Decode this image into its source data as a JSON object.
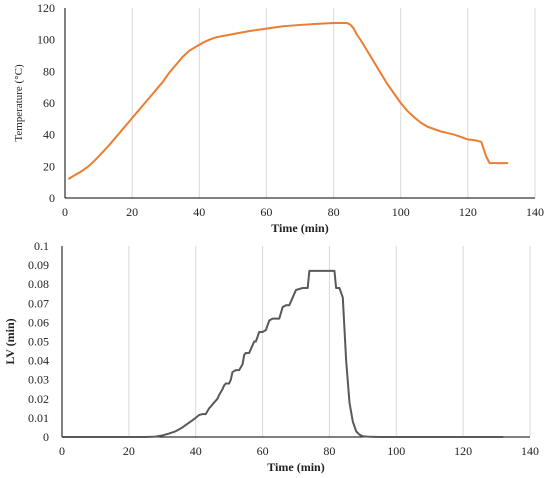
{
  "chart_data": [
    {
      "type": "line",
      "xlabel": "Time (min)",
      "ylabel": "Temperature  (°C)",
      "xlim": [
        0,
        140
      ],
      "ylim": [
        0,
        120
      ],
      "x_ticks": [
        "0",
        "20",
        "40",
        "60",
        "80",
        "100",
        "120",
        "140"
      ],
      "y_ticks": [
        "0",
        "20",
        "40",
        "60",
        "80",
        "100",
        "120"
      ],
      "grid": "vertical",
      "color": "#ed7d31",
      "series": [
        {
          "x": [
            1,
            3,
            5,
            7,
            9,
            11,
            13,
            15,
            17,
            19,
            21,
            23,
            25,
            27,
            29,
            31,
            33,
            35,
            37,
            39,
            41,
            43,
            45,
            50,
            55,
            60,
            65,
            70,
            75,
            80,
            84,
            85,
            86,
            87,
            88,
            90,
            92,
            94,
            96,
            98,
            100,
            102,
            104,
            106,
            108,
            110,
            112,
            114,
            116,
            118,
            120,
            122,
            123,
            124,
            125,
            125.5,
            126,
            126.5,
            127,
            128,
            130,
            132
          ],
          "y": [
            12,
            14.5,
            17,
            20,
            24,
            28.5,
            33,
            38,
            43,
            48,
            53,
            58,
            63,
            68,
            73,
            79,
            84,
            89,
            93,
            95.5,
            98,
            100,
            101.5,
            103.5,
            105.5,
            107,
            108.5,
            109.3,
            110,
            110.5,
            110.5,
            109.5,
            107,
            103,
            100,
            93,
            86,
            79,
            72,
            66,
            60,
            55,
            51,
            47.5,
            45,
            43.5,
            42,
            41,
            40,
            38.5,
            37,
            36.5,
            36,
            35.5,
            29,
            26,
            24,
            22,
            22,
            22,
            22,
            22
          ]
        }
      ]
    },
    {
      "type": "line",
      "xlabel": "Time (min)",
      "ylabel": "LV (min)",
      "xlim": [
        0,
        140
      ],
      "ylim": [
        0,
        0.1
      ],
      "x_ticks": [
        "0",
        "20",
        "40",
        "60",
        "80",
        "100",
        "120",
        "140"
      ],
      "y_ticks": [
        "0",
        "0.01",
        "0.02",
        "0.03",
        "0.04",
        "0.05",
        "0.06",
        "0.07",
        "0.08",
        "0.09",
        "0.1"
      ],
      "grid": "vertical",
      "color": "#595959",
      "series": [
        {
          "x": [
            0,
            25,
            28,
            30,
            32,
            34,
            36,
            38,
            40,
            41,
            42,
            43,
            44,
            45,
            46,
            46.5,
            47,
            48,
            48.5,
            49,
            50,
            50.5,
            51,
            52,
            53,
            54,
            54.5,
            55,
            56,
            57,
            57.5,
            58,
            59,
            60,
            61,
            62,
            63,
            63.5,
            64,
            65,
            66,
            67,
            67.5,
            68,
            70,
            72,
            73,
            73.5,
            74,
            76,
            78,
            80,
            81,
            81.5,
            82,
            83,
            84,
            85,
            86,
            87,
            88,
            89,
            90,
            92,
            95,
            100,
            110,
            120,
            132
          ],
          "y": [
            0,
            0,
            0.0002,
            0.0008,
            0.0018,
            0.003,
            0.005,
            0.0075,
            0.01,
            0.0115,
            0.012,
            0.012,
            0.015,
            0.017,
            0.019,
            0.02,
            0.022,
            0.025,
            0.027,
            0.028,
            0.028,
            0.03,
            0.034,
            0.035,
            0.035,
            0.038,
            0.043,
            0.044,
            0.044,
            0.048,
            0.05,
            0.05,
            0.055,
            0.055,
            0.056,
            0.061,
            0.062,
            0.062,
            0.062,
            0.062,
            0.068,
            0.069,
            0.069,
            0.069,
            0.077,
            0.078,
            0.078,
            0.078,
            0.087,
            0.087,
            0.087,
            0.087,
            0.087,
            0.087,
            0.078,
            0.078,
            0.073,
            0.04,
            0.018,
            0.008,
            0.003,
            0.0012,
            0.0004,
            0.0001,
            2e-05,
            0,
            0,
            0,
            0
          ]
        }
      ]
    }
  ]
}
